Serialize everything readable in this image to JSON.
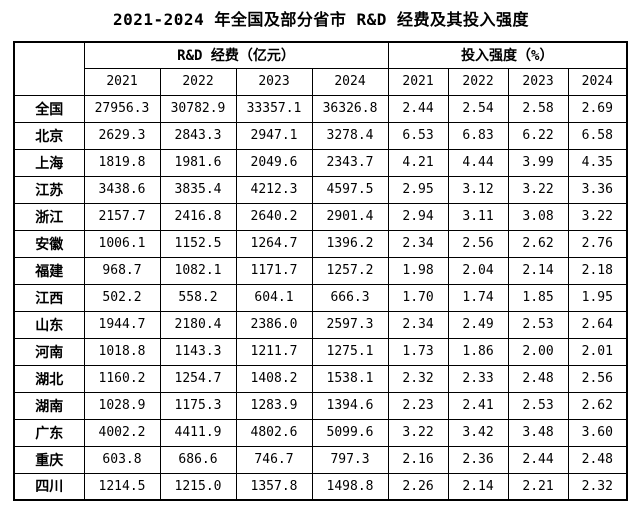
{
  "title": "2021-2024 年全国及部分省市 R&D 经费及其投入强度",
  "chart_data": {
    "type": "table",
    "title": "2021-2024 年全国及部分省市 R&D 经费及其投入强度",
    "group_headers": {
      "funding": "R&D 经费（亿元）",
      "intensity": "投入强度（%）"
    },
    "years": [
      "2021",
      "2022",
      "2023",
      "2024",
      "2021",
      "2022",
      "2023",
      "2024"
    ],
    "rows": [
      {
        "region": "全国",
        "values": [
          "27956.3",
          "30782.9",
          "33357.1",
          "36326.8",
          "2.44",
          "2.54",
          "2.58",
          "2.69"
        ]
      },
      {
        "region": "北京",
        "values": [
          "2629.3",
          "2843.3",
          "2947.1",
          "3278.4",
          "6.53",
          "6.83",
          "6.22",
          "6.58"
        ]
      },
      {
        "region": "上海",
        "values": [
          "1819.8",
          "1981.6",
          "2049.6",
          "2343.7",
          "4.21",
          "4.44",
          "3.99",
          "4.35"
        ]
      },
      {
        "region": "江苏",
        "values": [
          "3438.6",
          "3835.4",
          "4212.3",
          "4597.5",
          "2.95",
          "3.12",
          "3.22",
          "3.36"
        ]
      },
      {
        "region": "浙江",
        "values": [
          "2157.7",
          "2416.8",
          "2640.2",
          "2901.4",
          "2.94",
          "3.11",
          "3.08",
          "3.22"
        ]
      },
      {
        "region": "安徽",
        "values": [
          "1006.1",
          "1152.5",
          "1264.7",
          "1396.2",
          "2.34",
          "2.56",
          "2.62",
          "2.76"
        ]
      },
      {
        "region": "福建",
        "values": [
          "968.7",
          "1082.1",
          "1171.7",
          "1257.2",
          "1.98",
          "2.04",
          "2.14",
          "2.18"
        ]
      },
      {
        "region": "江西",
        "values": [
          "502.2",
          "558.2",
          "604.1",
          "666.3",
          "1.70",
          "1.74",
          "1.85",
          "1.95"
        ]
      },
      {
        "region": "山东",
        "values": [
          "1944.7",
          "2180.4",
          "2386.0",
          "2597.3",
          "2.34",
          "2.49",
          "2.53",
          "2.64"
        ]
      },
      {
        "region": "河南",
        "values": [
          "1018.8",
          "1143.3",
          "1211.7",
          "1275.1",
          "1.73",
          "1.86",
          "2.00",
          "2.01"
        ]
      },
      {
        "region": "湖北",
        "values": [
          "1160.2",
          "1254.7",
          "1408.2",
          "1538.1",
          "2.32",
          "2.33",
          "2.48",
          "2.56"
        ]
      },
      {
        "region": "湖南",
        "values": [
          "1028.9",
          "1175.3",
          "1283.9",
          "1394.6",
          "2.23",
          "2.41",
          "2.53",
          "2.62"
        ]
      },
      {
        "region": "广东",
        "values": [
          "4002.2",
          "4411.9",
          "4802.6",
          "5099.6",
          "3.22",
          "3.42",
          "3.48",
          "3.60"
        ]
      },
      {
        "region": "重庆",
        "values": [
          "603.8",
          "686.6",
          "746.7",
          "797.3",
          "2.16",
          "2.36",
          "2.44",
          "2.48"
        ]
      },
      {
        "region": "四川",
        "values": [
          "1214.5",
          "1215.0",
          "1357.8",
          "1498.8",
          "2.26",
          "2.14",
          "2.21",
          "2.32"
        ]
      }
    ]
  }
}
